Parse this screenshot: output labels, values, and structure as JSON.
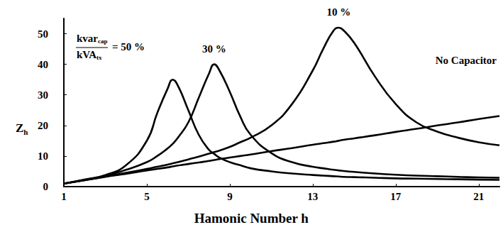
{
  "chart_data": {
    "type": "line",
    "xlabel": "Hamonic Number h",
    "ylabel": "Z",
    "ylabel_sub": "h",
    "ratio_label": {
      "numerator": "kvar",
      "numerator_sub": "cap",
      "denominator": "kVA",
      "denominator_sub": "tx",
      "equals": "="
    },
    "x": [
      1,
      2,
      3,
      4,
      5,
      5.5,
      6,
      6.25,
      6.5,
      7,
      7.5,
      8,
      8.25,
      8.5,
      9,
      9.5,
      10,
      11,
      12,
      13,
      13.5,
      14,
      14.25,
      14.5,
      15,
      16,
      17,
      18,
      19,
      20,
      21,
      22
    ],
    "series": [
      {
        "name": "50 %",
        "color": "#000000",
        "values": [
          1,
          2.3,
          3.8,
          7,
          15,
          24,
          32,
          35,
          33,
          25,
          17,
          12,
          10.7,
          9.5,
          8,
          7,
          6,
          5,
          4.3,
          3.8,
          3.6,
          3.4,
          3.3,
          3.2,
          3.1,
          2.9,
          2.7,
          2.6,
          2.5,
          2.4,
          2.3,
          2.2
        ]
      },
      {
        "name": "30 %",
        "color": "#000000",
        "values": [
          1,
          2.2,
          3.5,
          5.5,
          8,
          10,
          12.5,
          14,
          16,
          21,
          29,
          37,
          40,
          38,
          31,
          23,
          17,
          11,
          8,
          6.5,
          6,
          5.5,
          5.3,
          5.1,
          4.8,
          4.3,
          3.9,
          3.6,
          3.4,
          3.2,
          3,
          2.9
        ]
      },
      {
        "name": "10 %",
        "color": "#000000",
        "values": [
          1,
          2.1,
          3.3,
          4.5,
          5.8,
          6.5,
          7.2,
          7.6,
          8,
          8.9,
          9.8,
          10.8,
          11.3,
          11.8,
          13,
          14.5,
          16,
          20,
          27,
          38,
          45,
          51,
          52,
          51,
          47,
          36,
          27,
          21,
          18,
          16,
          14.5,
          13.5
        ]
      },
      {
        "name": "No Capacitor",
        "color": "#000000",
        "values": [
          1,
          2.1,
          3.2,
          4.2,
          5.3,
          5.8,
          6.3,
          6.6,
          6.9,
          7.4,
          7.9,
          8.4,
          8.7,
          9,
          9.5,
          10,
          10.5,
          11.6,
          12.6,
          13.7,
          14.2,
          14.7,
          15,
          15.3,
          15.8,
          16.8,
          17.9,
          18.9,
          20,
          21,
          22.1,
          23.1
        ]
      }
    ],
    "xlim": [
      1,
      22
    ],
    "xticks": [
      1,
      5,
      9,
      13,
      17,
      21
    ],
    "ylim": [
      0,
      55
    ],
    "yticks": [
      0,
      10,
      20,
      30,
      40,
      50
    ],
    "grid": false,
    "legend": "none",
    "line_style": "solid",
    "marker": "none"
  }
}
